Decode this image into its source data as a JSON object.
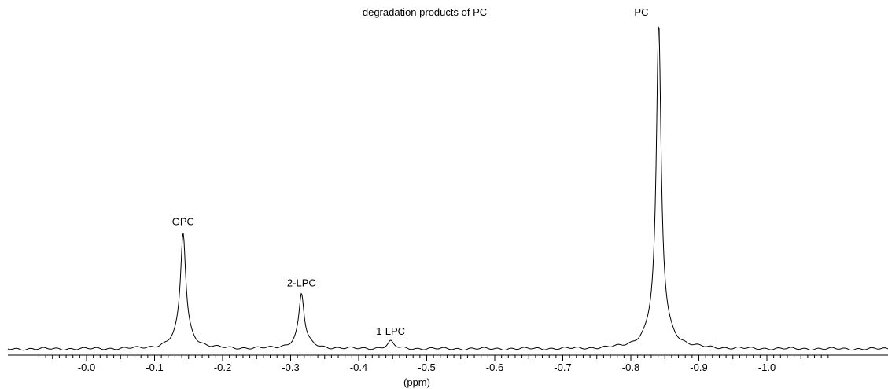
{
  "chart_data": {
    "type": "line",
    "title": "degradation products of PC",
    "xlabel": "(ppm)",
    "ylabel": "",
    "x_axis_reversed": true,
    "xlim": [
      0.075,
      -1.09
    ],
    "ylim": [
      0,
      1
    ],
    "grid": false,
    "legend": "none",
    "x_ticks": [
      0.0,
      -0.1,
      -0.2,
      -0.3,
      -0.4,
      -0.5,
      -0.6,
      -0.7,
      -0.8,
      -0.9,
      -1.0
    ],
    "x_tick_labels": [
      "-0.0",
      "-0.1",
      "-0.2",
      "-0.3",
      "-0.4",
      "-0.5",
      "-0.6",
      "-0.7",
      "-0.8",
      "-0.9",
      "-1.0"
    ],
    "baseline": 0.007,
    "peaks": [
      {
        "label": "GPC",
        "center": -0.142,
        "height": 0.358,
        "width": 0.0045
      },
      {
        "label": "2-LPC",
        "center": -0.316,
        "height": 0.17,
        "width": 0.0045
      },
      {
        "label": "1-LPC",
        "center": -0.447,
        "height": 0.022,
        "width": 0.005
      },
      {
        "label": "PC",
        "center": -0.841,
        "height": 1.0,
        "width": 0.004
      }
    ]
  }
}
